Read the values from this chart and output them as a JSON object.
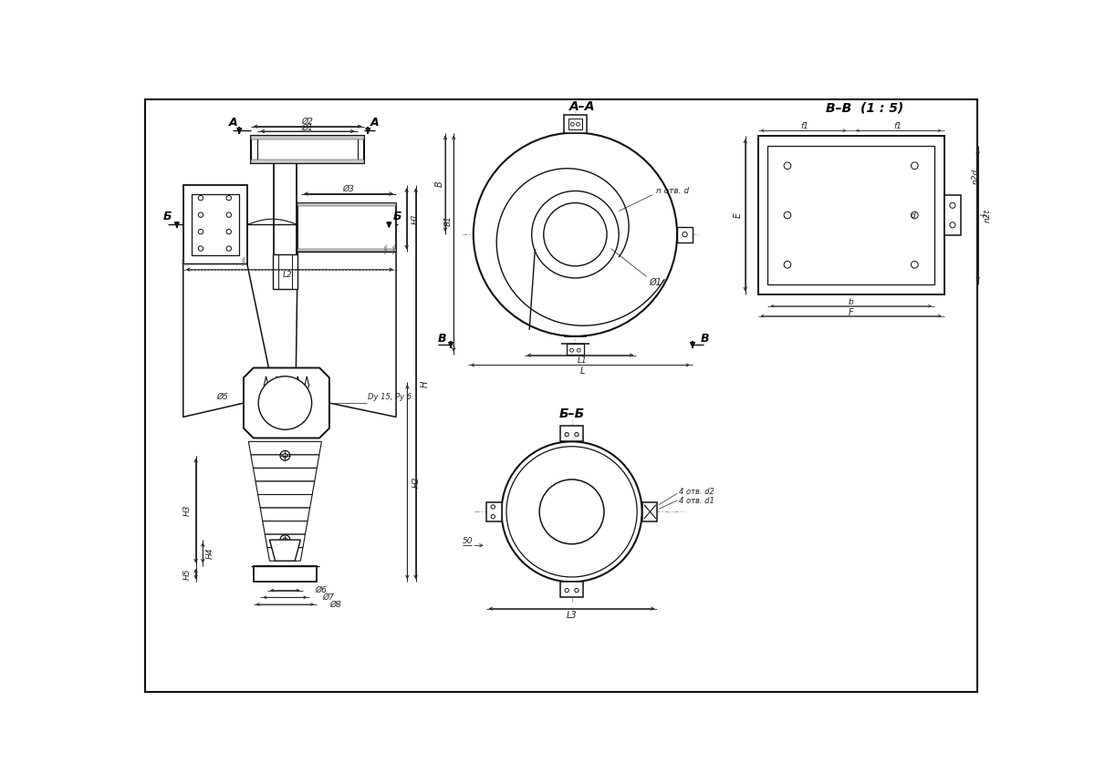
{
  "bg_color": "#ffffff",
  "lc": "#111111",
  "dc": "#222222",
  "cc": "#777777",
  "sec_AA": "А–А",
  "sec_BB": "Б–Б",
  "sec_VV": "В–В  (1 : 5)"
}
